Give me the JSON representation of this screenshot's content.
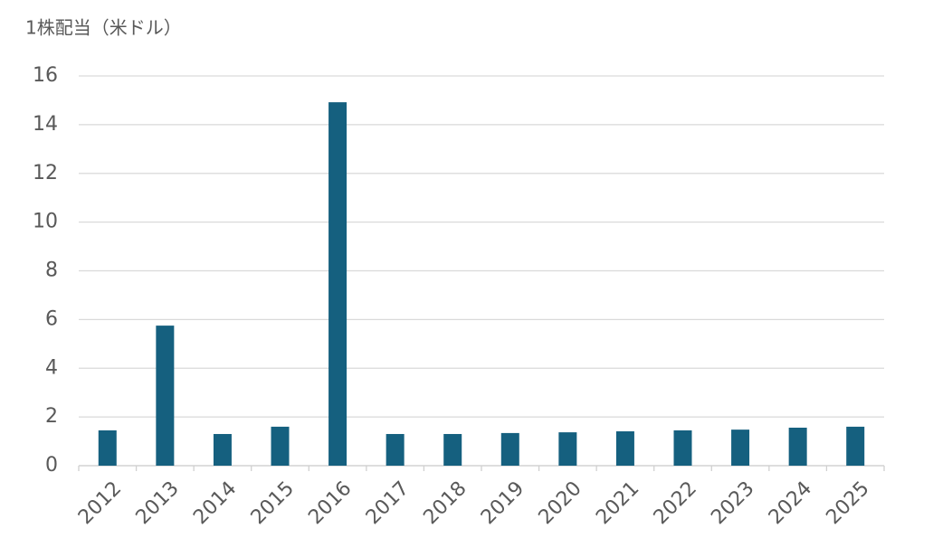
{
  "chart_data": {
    "type": "bar",
    "title": "1株配当（米ドル）",
    "categories": [
      "2012",
      "2013",
      "2014",
      "2015",
      "2016",
      "2017",
      "2018",
      "2019",
      "2020",
      "2021",
      "2022",
      "2023",
      "2024",
      "2025"
    ],
    "values": [
      1.45,
      5.75,
      1.3,
      1.6,
      14.92,
      1.3,
      1.3,
      1.34,
      1.37,
      1.41,
      1.45,
      1.48,
      1.56,
      1.6
    ],
    "color": "#15607f",
    "ylim": [
      0,
      16
    ],
    "yticks": [
      0,
      2,
      4,
      6,
      8,
      10,
      12,
      14,
      16
    ],
    "grid": true
  }
}
